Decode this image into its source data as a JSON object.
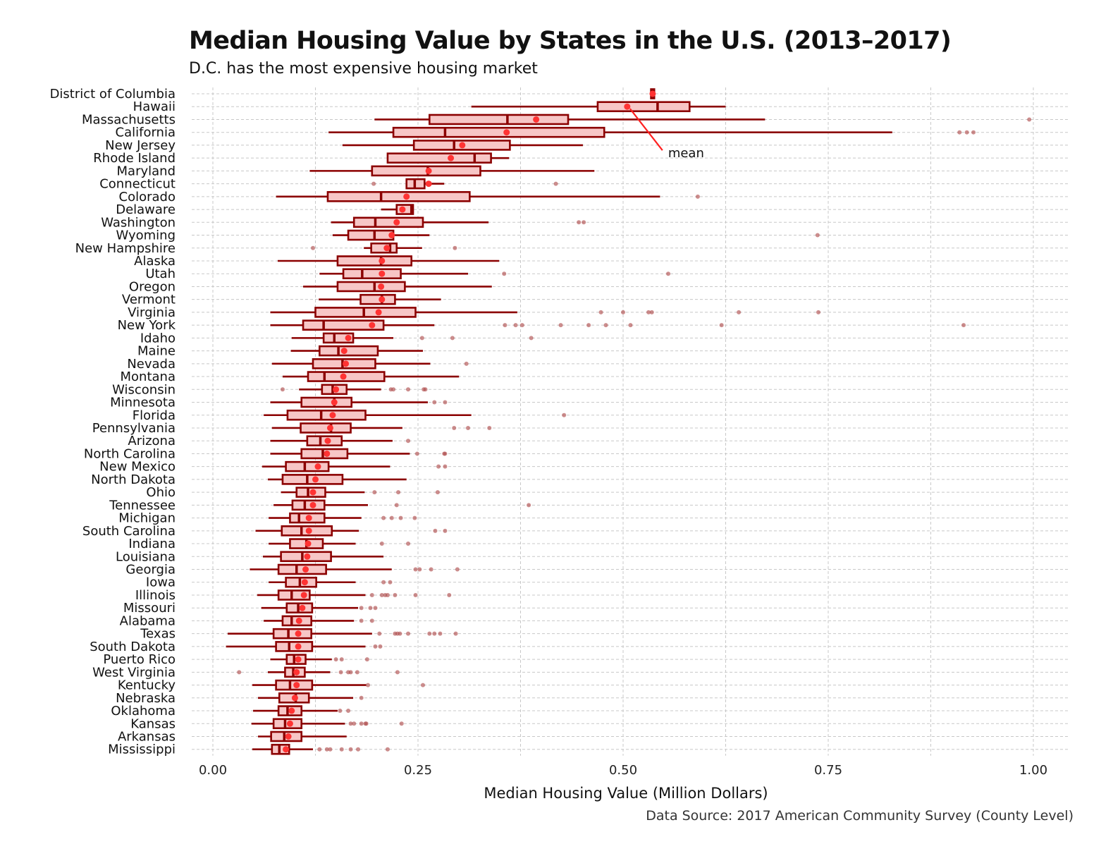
{
  "title": "Median Housing Value by States in the U.S. (2013–2017)",
  "subtitle": "D.C. has the most expensive housing market",
  "caption": "Data Source: 2017 American Community Survey (County Level)",
  "colors": {
    "box_fill": "#f7c6c6",
    "box_stroke": "#8b0000",
    "mean": "#ff3333",
    "outlier": "#b05050",
    "grid": "#c8c8c8",
    "annotation_line": "#ff2020"
  },
  "chart_data": {
    "type": "boxplot",
    "orientation": "horizontal",
    "xlabel": "Median Housing Value (Million Dollars)",
    "xlim": [
      0,
      1.0
    ],
    "xticks": [
      "0.00",
      "0.25",
      "0.50",
      "0.75",
      "1.00"
    ],
    "xtick_values": [
      0,
      0.25,
      0.5,
      0.75,
      1.0
    ],
    "grid": true,
    "annotation": {
      "text": "mean",
      "points_to_state": "Hawaii"
    },
    "states": [
      {
        "name": "District of Columbia",
        "wmin": 0.536,
        "q1": 0.534,
        "med": 0.536,
        "q3": 0.538,
        "wmax": 0.536,
        "mean": 0.536,
        "outliers": []
      },
      {
        "name": "Hawaii",
        "wmin": 0.315,
        "q1": 0.469,
        "med": 0.542,
        "q3": 0.581,
        "wmax": 0.625,
        "mean": 0.505,
        "outliers": []
      },
      {
        "name": "Massachusetts",
        "wmin": 0.197,
        "q1": 0.264,
        "med": 0.359,
        "q3": 0.433,
        "wmax": 0.673,
        "mean": 0.394,
        "outliers": [
          0.995
        ]
      },
      {
        "name": "California",
        "wmin": 0.141,
        "q1": 0.22,
        "med": 0.283,
        "q3": 0.477,
        "wmax": 0.828,
        "mean": 0.358,
        "outliers": [
          0.91,
          0.919,
          0.927
        ]
      },
      {
        "name": "New Jersey",
        "wmin": 0.158,
        "q1": 0.245,
        "med": 0.294,
        "q3": 0.362,
        "wmax": 0.451,
        "mean": 0.304,
        "outliers": []
      },
      {
        "name": "Rhode Island",
        "wmin": 0.214,
        "q1": 0.213,
        "med": 0.319,
        "q3": 0.339,
        "wmax": 0.361,
        "mean": 0.29,
        "outliers": []
      },
      {
        "name": "Maryland",
        "wmin": 0.118,
        "q1": 0.194,
        "med": 0.262,
        "q3": 0.326,
        "wmax": 0.465,
        "mean": 0.263,
        "outliers": []
      },
      {
        "name": "Connecticut",
        "wmin": 0.236,
        "q1": 0.236,
        "med": 0.246,
        "q3": 0.258,
        "wmax": 0.282,
        "mean": 0.263,
        "outliers": [
          0.196,
          0.418
        ]
      },
      {
        "name": "Colorado",
        "wmin": 0.077,
        "q1": 0.14,
        "med": 0.205,
        "q3": 0.313,
        "wmax": 0.545,
        "mean": 0.236,
        "outliers": [
          0.591
        ]
      },
      {
        "name": "Delaware",
        "wmin": 0.205,
        "q1": 0.224,
        "med": 0.242,
        "q3": 0.244,
        "wmax": 0.244,
        "mean": 0.231,
        "outliers": []
      },
      {
        "name": "Washington",
        "wmin": 0.144,
        "q1": 0.172,
        "med": 0.198,
        "q3": 0.256,
        "wmax": 0.336,
        "mean": 0.224,
        "outliers": [
          0.446,
          0.452
        ]
      },
      {
        "name": "Wyoming",
        "wmin": 0.146,
        "q1": 0.165,
        "med": 0.197,
        "q3": 0.22,
        "wmax": 0.264,
        "mean": 0.218,
        "outliers": [
          0.737
        ]
      },
      {
        "name": "New Hampshire",
        "wmin": 0.184,
        "q1": 0.193,
        "med": 0.216,
        "q3": 0.224,
        "wmax": 0.255,
        "mean": 0.212,
        "outliers": [
          0.122,
          0.295
        ]
      },
      {
        "name": "Alaska",
        "wmin": 0.079,
        "q1": 0.152,
        "med": 0.205,
        "q3": 0.242,
        "wmax": 0.349,
        "mean": 0.206,
        "outliers": []
      },
      {
        "name": "Utah",
        "wmin": 0.13,
        "q1": 0.159,
        "med": 0.182,
        "q3": 0.229,
        "wmax": 0.311,
        "mean": 0.206,
        "outliers": [
          0.355,
          0.555
        ]
      },
      {
        "name": "Oregon",
        "wmin": 0.11,
        "q1": 0.152,
        "med": 0.197,
        "q3": 0.234,
        "wmax": 0.34,
        "mean": 0.205,
        "outliers": []
      },
      {
        "name": "Vermont",
        "wmin": 0.129,
        "q1": 0.18,
        "med": 0.206,
        "q3": 0.222,
        "wmax": 0.278,
        "mean": 0.206,
        "outliers": []
      },
      {
        "name": "Virginia",
        "wmin": 0.07,
        "q1": 0.125,
        "med": 0.184,
        "q3": 0.247,
        "wmax": 0.371,
        "mean": 0.202,
        "outliers": [
          0.473,
          0.5,
          0.531,
          0.535,
          0.641,
          0.738
        ]
      },
      {
        "name": "New York",
        "wmin": 0.07,
        "q1": 0.11,
        "med": 0.135,
        "q3": 0.208,
        "wmax": 0.27,
        "mean": 0.194,
        "outliers": [
          0.356,
          0.369,
          0.377,
          0.424,
          0.458,
          0.479,
          0.509,
          0.62,
          0.915
        ]
      },
      {
        "name": "Idaho",
        "wmin": 0.096,
        "q1": 0.135,
        "med": 0.148,
        "q3": 0.171,
        "wmax": 0.22,
        "mean": 0.165,
        "outliers": [
          0.255,
          0.292,
          0.388
        ]
      },
      {
        "name": "Maine",
        "wmin": 0.095,
        "q1": 0.13,
        "med": 0.153,
        "q3": 0.201,
        "wmax": 0.256,
        "mean": 0.16,
        "outliers": []
      },
      {
        "name": "Nevada",
        "wmin": 0.072,
        "q1": 0.122,
        "med": 0.158,
        "q3": 0.198,
        "wmax": 0.265,
        "mean": 0.162,
        "outliers": [
          0.309
        ]
      },
      {
        "name": "Montana",
        "wmin": 0.085,
        "q1": 0.116,
        "med": 0.136,
        "q3": 0.209,
        "wmax": 0.3,
        "mean": 0.159,
        "outliers": []
      },
      {
        "name": "Wisconsin",
        "wmin": 0.105,
        "q1": 0.133,
        "med": 0.146,
        "q3": 0.163,
        "wmax": 0.205,
        "mean": 0.15,
        "outliers": [
          0.085,
          0.217,
          0.22,
          0.238,
          0.257,
          0.259
        ]
      },
      {
        "name": "Minnesota",
        "wmin": 0.07,
        "q1": 0.108,
        "med": 0.148,
        "q3": 0.169,
        "wmax": 0.262,
        "mean": 0.148,
        "outliers": [
          0.27,
          0.283
        ]
      },
      {
        "name": "Florida",
        "wmin": 0.062,
        "q1": 0.091,
        "med": 0.132,
        "q3": 0.186,
        "wmax": 0.315,
        "mean": 0.146,
        "outliers": [
          0.428
        ]
      },
      {
        "name": "Pennsylvania",
        "wmin": 0.072,
        "q1": 0.107,
        "med": 0.144,
        "q3": 0.168,
        "wmax": 0.231,
        "mean": 0.143,
        "outliers": [
          0.294,
          0.311,
          0.337
        ]
      },
      {
        "name": "Arizona",
        "wmin": 0.07,
        "q1": 0.115,
        "med": 0.131,
        "q3": 0.157,
        "wmax": 0.219,
        "mean": 0.14,
        "outliers": [
          0.238
        ]
      },
      {
        "name": "North Carolina",
        "wmin": 0.07,
        "q1": 0.108,
        "med": 0.134,
        "q3": 0.164,
        "wmax": 0.24,
        "mean": 0.139,
        "outliers": [
          0.249,
          0.282,
          0.283
        ]
      },
      {
        "name": "New Mexico",
        "wmin": 0.06,
        "q1": 0.089,
        "med": 0.112,
        "q3": 0.141,
        "wmax": 0.216,
        "mean": 0.128,
        "outliers": [
          0.275,
          0.283
        ]
      },
      {
        "name": "North Dakota",
        "wmin": 0.067,
        "q1": 0.085,
        "med": 0.115,
        "q3": 0.158,
        "wmax": 0.236,
        "mean": 0.125,
        "outliers": []
      },
      {
        "name": "Ohio",
        "wmin": 0.083,
        "q1": 0.102,
        "med": 0.116,
        "q3": 0.137,
        "wmax": 0.185,
        "mean": 0.122,
        "outliers": [
          0.197,
          0.226,
          0.274
        ]
      },
      {
        "name": "Tennessee",
        "wmin": 0.074,
        "q1": 0.097,
        "med": 0.112,
        "q3": 0.136,
        "wmax": 0.189,
        "mean": 0.122,
        "outliers": [
          0.224,
          0.385
        ]
      },
      {
        "name": "Michigan",
        "wmin": 0.068,
        "q1": 0.094,
        "med": 0.105,
        "q3": 0.136,
        "wmax": 0.181,
        "mean": 0.117,
        "outliers": [
          0.208,
          0.218,
          0.229,
          0.246
        ]
      },
      {
        "name": "South Carolina",
        "wmin": 0.052,
        "q1": 0.084,
        "med": 0.108,
        "q3": 0.145,
        "wmax": 0.178,
        "mean": 0.117,
        "outliers": [
          0.271,
          0.283
        ]
      },
      {
        "name": "Indiana",
        "wmin": 0.068,
        "q1": 0.094,
        "med": 0.114,
        "q3": 0.134,
        "wmax": 0.174,
        "mean": 0.116,
        "outliers": [
          0.206,
          0.238
        ]
      },
      {
        "name": "Louisiana",
        "wmin": 0.061,
        "q1": 0.083,
        "med": 0.109,
        "q3": 0.144,
        "wmax": 0.208,
        "mean": 0.115,
        "outliers": []
      },
      {
        "name": "Georgia",
        "wmin": 0.045,
        "q1": 0.08,
        "med": 0.102,
        "q3": 0.138,
        "wmax": 0.218,
        "mean": 0.113,
        "outliers": [
          0.247,
          0.252,
          0.266,
          0.298
        ]
      },
      {
        "name": "Iowa",
        "wmin": 0.068,
        "q1": 0.089,
        "med": 0.106,
        "q3": 0.126,
        "wmax": 0.174,
        "mean": 0.112,
        "outliers": [
          0.208,
          0.216
        ]
      },
      {
        "name": "Illinois",
        "wmin": 0.054,
        "q1": 0.08,
        "med": 0.096,
        "q3": 0.118,
        "wmax": 0.186,
        "mean": 0.111,
        "outliers": [
          0.194,
          0.206,
          0.21,
          0.213,
          0.222,
          0.247,
          0.288
        ]
      },
      {
        "name": "Missouri",
        "wmin": 0.059,
        "q1": 0.09,
        "med": 0.104,
        "q3": 0.121,
        "wmax": 0.177,
        "mean": 0.109,
        "outliers": [
          0.181,
          0.192,
          0.198
        ]
      },
      {
        "name": "Alabama",
        "wmin": 0.062,
        "q1": 0.085,
        "med": 0.096,
        "q3": 0.12,
        "wmax": 0.172,
        "mean": 0.105,
        "outliers": [
          0.181,
          0.194
        ]
      },
      {
        "name": "Texas",
        "wmin": 0.018,
        "q1": 0.074,
        "med": 0.092,
        "q3": 0.12,
        "wmax": 0.194,
        "mean": 0.104,
        "outliers": [
          0.203,
          0.222,
          0.225,
          0.228,
          0.238,
          0.264,
          0.27,
          0.277,
          0.296
        ]
      },
      {
        "name": "South Dakota",
        "wmin": 0.016,
        "q1": 0.077,
        "med": 0.093,
        "q3": 0.121,
        "wmax": 0.186,
        "mean": 0.104,
        "outliers": [
          0.198,
          0.204
        ]
      },
      {
        "name": "Puerto Rico",
        "wmin": 0.07,
        "q1": 0.09,
        "med": 0.099,
        "q3": 0.113,
        "wmax": 0.145,
        "mean": 0.104,
        "outliers": [
          0.15,
          0.157,
          0.188
        ]
      },
      {
        "name": "West Virginia",
        "wmin": 0.067,
        "q1": 0.088,
        "med": 0.098,
        "q3": 0.112,
        "wmax": 0.143,
        "mean": 0.102,
        "outliers": [
          0.032,
          0.156,
          0.165,
          0.168,
          0.176,
          0.225
        ]
      },
      {
        "name": "Kentucky",
        "wmin": 0.048,
        "q1": 0.077,
        "med": 0.094,
        "q3": 0.121,
        "wmax": 0.187,
        "mean": 0.102,
        "outliers": [
          0.189,
          0.256
        ]
      },
      {
        "name": "Nebraska",
        "wmin": 0.055,
        "q1": 0.081,
        "med": 0.101,
        "q3": 0.117,
        "wmax": 0.171,
        "mean": 0.1,
        "outliers": [
          0.181
        ]
      },
      {
        "name": "Oklahoma",
        "wmin": 0.049,
        "q1": 0.08,
        "med": 0.091,
        "q3": 0.108,
        "wmax": 0.152,
        "mean": 0.096,
        "outliers": [
          0.155,
          0.165
        ]
      },
      {
        "name": "Kansas",
        "wmin": 0.047,
        "q1": 0.074,
        "med": 0.088,
        "q3": 0.108,
        "wmax": 0.161,
        "mean": 0.094,
        "outliers": [
          0.168,
          0.172,
          0.181,
          0.186,
          0.187,
          0.23
        ]
      },
      {
        "name": "Arkansas",
        "wmin": 0.055,
        "q1": 0.071,
        "med": 0.087,
        "q3": 0.108,
        "wmax": 0.163,
        "mean": 0.092,
        "outliers": []
      },
      {
        "name": "Mississippi",
        "wmin": 0.048,
        "q1": 0.072,
        "med": 0.081,
        "q3": 0.093,
        "wmax": 0.122,
        "mean": 0.089,
        "outliers": [
          0.13,
          0.139,
          0.143,
          0.157,
          0.168,
          0.177,
          0.213
        ]
      }
    ]
  }
}
